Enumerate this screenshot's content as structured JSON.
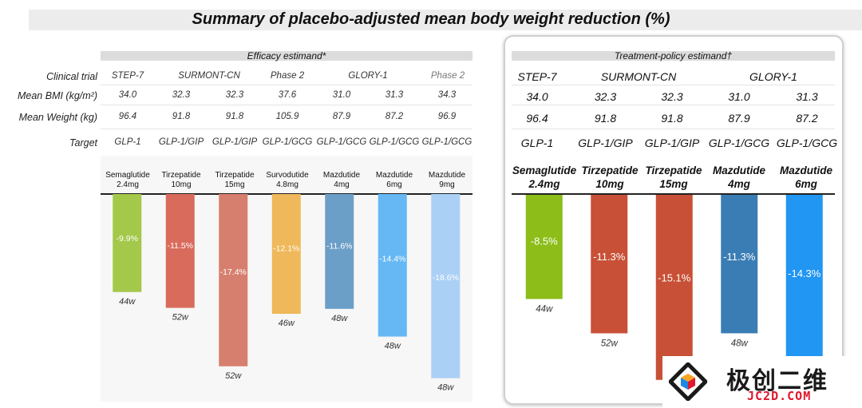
{
  "title": "Summary of  placebo-adjusted mean body weight reduction (%)",
  "row_labels": [
    "Clinical trial",
    "Mean BMI (kg/m²)",
    "Mean Weight (kg)",
    "Target"
  ],
  "efficacy": {
    "estimand": "Efficacy estimand*",
    "trials": [
      "STEP-7",
      "SURMONT-CN",
      "Phase 2",
      "GLORY-1",
      "Phase 2"
    ],
    "bmi": [
      "34.0",
      "32.3",
      "32.3",
      "37.6",
      "31.0",
      "31.3",
      "34.3"
    ],
    "weight": [
      "96.4",
      "91.8",
      "91.8",
      "105.9",
      "87.9",
      "87.2",
      "96.9"
    ],
    "target": [
      "GLP-1",
      "GLP-1/GIP",
      "GLP-1/GIP",
      "GLP-1/GCG",
      "GLP-1/GCG",
      "GLP-1/GCG",
      "GLP-1/GCG"
    ],
    "drug_names": [
      "Semaglutide",
      "Tirzepatide",
      "Tirzepatide",
      "Survodutide",
      "Mazdutide",
      "Mazdutide",
      "Mazdutide"
    ],
    "drug_doses": [
      "2.4mg",
      "10mg",
      "15mg",
      "4.8mg",
      "4mg",
      "6mg",
      "9mg"
    ]
  },
  "treatment_policy": {
    "estimand": "Treatment-policy estimand†",
    "trials": [
      "STEP-7",
      "SURMONT-CN",
      "GLORY-1"
    ],
    "bmi": [
      "34.0",
      "32.3",
      "32.3",
      "31.0",
      "31.3"
    ],
    "weight": [
      "96.4",
      "91.8",
      "91.8",
      "87.9",
      "87.2"
    ],
    "target": [
      "GLP-1",
      "GLP-1/GIP",
      "GLP-1/GIP",
      "GLP-1/GCG",
      "GLP-1/GCG"
    ],
    "drug_names": [
      "Semaglutide",
      "Tirzepatide",
      "Tirzepatide",
      "Mazdutide",
      "Mazdutide"
    ],
    "drug_doses": [
      "2.4mg",
      "10mg",
      "15mg",
      "4mg",
      "6mg"
    ]
  },
  "chart_data": [
    {
      "type": "bar",
      "categories": [
        "Semaglutide 2.4mg",
        "Tirzepatide 10mg",
        "Tirzepatide 15mg",
        "Survodutide 4.8mg",
        "Mazdutide 4mg",
        "Mazdutide 6mg",
        "Mazdutide 9mg"
      ],
      "values": [
        -9.9,
        -11.5,
        -17.4,
        -12.1,
        -11.6,
        -14.4,
        -18.6
      ],
      "value_labels": [
        "-9.9%",
        "-11.5%",
        "-17.4%",
        "-12.1%",
        "-11.6%",
        "-14.4%",
        "-18.6%"
      ],
      "durations": [
        "44w",
        "52w",
        "52w",
        "46w",
        "48w",
        "48w",
        "48w"
      ],
      "colors": [
        "#a4c84a",
        "#d96b5c",
        "#d77f6e",
        "#efb85a",
        "#6c9fc8",
        "#66b8f4",
        "#abd0f6"
      ],
      "ylim": [
        -19,
        0
      ]
    },
    {
      "type": "bar",
      "categories": [
        "Semaglutide 2.4mg",
        "Tirzepatide 10mg",
        "Tirzepatide 15mg",
        "Mazdutide 4mg",
        "Mazdutide 6mg"
      ],
      "values": [
        -8.5,
        -11.3,
        -15.1,
        -11.3,
        -14.3
      ],
      "value_labels": [
        "-8.5%",
        "-11.3%",
        "-15.1%",
        "-11.3%",
        "-14.3%"
      ],
      "durations": [
        "44w",
        "52w",
        "",
        "48w",
        ""
      ],
      "colors": [
        "#8cbd18",
        "#c85036",
        "#c85036",
        "#3a7db5",
        "#2196f3"
      ],
      "ylim": [
        -15.8,
        0
      ]
    }
  ],
  "watermark": {
    "name_cn": "极创二维",
    "name_en": "JC2D.COM"
  }
}
